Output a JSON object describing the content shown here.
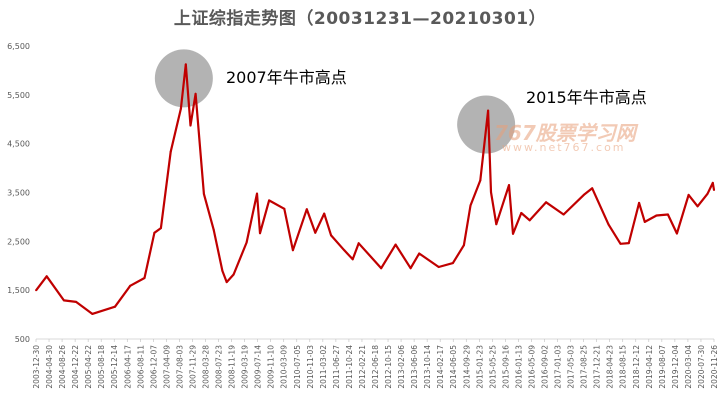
{
  "chart_data": {
    "type": "line",
    "title": "上证综指走势图（20031231—20210301）",
    "xlabel": "",
    "ylabel": "",
    "ylim": [
      500,
      6500
    ],
    "yticks": [
      "6,500",
      "5,500",
      "4,500",
      "3,500",
      "2,500",
      "1,500",
      "500"
    ],
    "grid": false,
    "line_color": "#c00000",
    "highlight_color": "#a6a6a6",
    "date_labels": [
      "2003-12-30",
      "2004-04-30",
      "2004-08-26",
      "2004-12-22",
      "2005-04-22",
      "2005-08-18",
      "2005-12-14",
      "2006-04-17",
      "2006-08-11",
      "2006-12-07",
      "2007-04-09",
      "2007-08-03",
      "2007-11-29",
      "2008-03-28",
      "2008-07-23",
      "2008-11-19",
      "2009-03-19",
      "2009-07-14",
      "2009-11-10",
      "2010-03-09",
      "2010-07-05",
      "2010-11-03",
      "2011-03-02",
      "2011-06-27",
      "2011-10-24",
      "2012-02-21",
      "2012-06-18",
      "2012-10-15",
      "2013-02-06",
      "2013-06-06",
      "2013-10-14",
      "2014-02-17",
      "2014-06-05",
      "2014-09-29",
      "2015-01-23",
      "2015-05-25",
      "2015-09-16",
      "2016-01-13",
      "2016-05-09",
      "2016-09-02",
      "2017-01-03",
      "2017-05-03",
      "2017-08-25",
      "2017-12-21",
      "2018-04-23",
      "2018-08-15",
      "2018-12-12",
      "2019-04-12",
      "2019-08-07",
      "2019-12-04",
      "2020-03-04",
      "2020-07-30",
      "2020-11-26"
    ],
    "series": [
      {
        "x": [
          "2003-12-31",
          "2004-04-07",
          "2004-09-13",
          "2005-01-04",
          "2005-06-03",
          "2005-12-30",
          "2006-05-19",
          "2006-09-29",
          "2006-12-29",
          "2007-02-27",
          "2007-05-29",
          "2007-08-31",
          "2007-10-16",
          "2007-11-28",
          "2008-01-14",
          "2008-03-31",
          "2008-06-30",
          "2008-09-18",
          "2008-10-28",
          "2008-12-31",
          "2009-04-30",
          "2009-08-04",
          "2009-09-01",
          "2009-11-24",
          "2010-04-14",
          "2010-07-02",
          "2010-11-08",
          "2011-01-25",
          "2011-04-18",
          "2011-06-20",
          "2011-10-21",
          "2012-01-06",
          "2012-03-02",
          "2012-09-26",
          "2013-02-06",
          "2013-06-25",
          "2013-09-12",
          "2014-03-12",
          "2014-07-21",
          "2014-10-31",
          "2014-12-31",
          "2015-03-31",
          "2015-06-12",
          "2015-07-08",
          "2015-08-26",
          "2015-12-22",
          "2016-01-28",
          "2016-04-14",
          "2016-06-30",
          "2016-11-29",
          "2017-05-10",
          "2017-11-13",
          "2018-01-29",
          "2018-06-29",
          "2018-10-18",
          "2019-01-03",
          "2019-04-08",
          "2019-05-31",
          "2019-09-16",
          "2019-12-31",
          "2020-03-23",
          "2020-07-09",
          "2020-09-30",
          "2020-12-31",
          "2021-02-18",
          "2021-03-01"
        ],
        "values": [
          1497,
          1783,
          1290,
          1260,
          1013,
          1161,
          1590,
          1750,
          2675,
          2771,
          4335,
          5218,
          6124,
          4871,
          5522,
          3472,
          2736,
          1895,
          1665,
          1821,
          2477,
          3478,
          2667,
          3338,
          3166,
          2319,
          3159,
          2677,
          3067,
          2621,
          2317,
          2132,
          2460,
          1950,
          2434,
          1950,
          2250,
          1974,
          2054,
          2420,
          3234,
          3748,
          5178,
          3507,
          2850,
          3651,
          2655,
          3080,
          2930,
          3300,
          3050,
          3450,
          3587,
          2847,
          2449,
          2464,
          3288,
          2898,
          3030,
          3050,
          2660,
          3450,
          3218,
          3473,
          3696,
          3551
        ]
      }
    ],
    "annotations": [
      {
        "label": "2007年牛市高点",
        "date": "2007-10-16",
        "value": 6124
      },
      {
        "label": "2015年牛市高点",
        "date": "2015-06-12",
        "value": 5178
      }
    ],
    "watermark": {
      "text": "767股票学习网",
      "sub": "www.net767.com"
    }
  }
}
